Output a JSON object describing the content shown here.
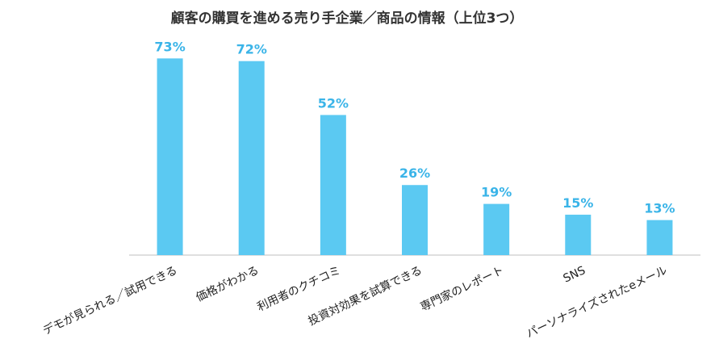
{
  "colors": {
    "bar": "#5bc9f2",
    "label": "#3ab4e8",
    "axis": "#bfbfbf",
    "text": "#222222"
  },
  "chart_data": {
    "type": "bar",
    "title": "顧客の購買を進める売り手企業／商品の情報（上位3つ）",
    "xlabel": "",
    "ylabel": "",
    "ylim": [
      0,
      80
    ],
    "grid": false,
    "categories": [
      "デモが見られる／試用できる",
      "価格がわかる",
      "利用者のクチコミ",
      "投資対効果を試算できる",
      "専門家のレポート",
      "SNS",
      "パーソナライズされたeメール"
    ],
    "values": [
      73,
      72,
      52,
      26,
      19,
      15,
      13
    ],
    "data_labels": [
      "73%",
      "72%",
      "52%",
      "26%",
      "19%",
      "15%",
      "13%"
    ]
  }
}
